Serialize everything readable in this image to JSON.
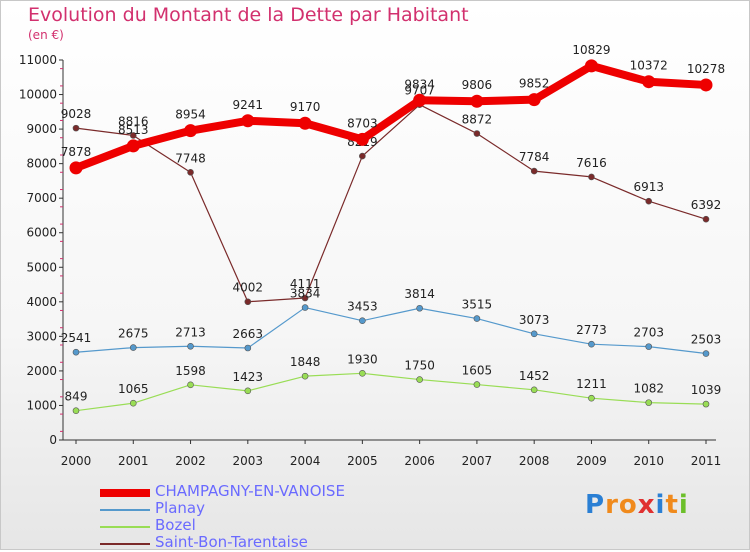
{
  "chart_data": {
    "type": "line",
    "title": "Evolution du Montant de la Dette par Habitant",
    "subtitle": "(en €)",
    "xlabel": "",
    "ylabel": "",
    "ylim": [
      0,
      11000
    ],
    "yticks": [
      0,
      1000,
      2000,
      3000,
      4000,
      5000,
      6000,
      7000,
      8000,
      9000,
      10000,
      11000
    ],
    "x": [
      "2000",
      "2001",
      "2002",
      "2003",
      "2004",
      "2005",
      "2006",
      "2007",
      "2008",
      "2009",
      "2010",
      "2011"
    ],
    "legend_position": "bottom-left",
    "grid": false,
    "series": [
      {
        "name": "CHAMPAGNY-EN-VANOISE",
        "color": "#ee0000",
        "values": [
          7878,
          8513,
          8954,
          9241,
          9170,
          8703,
          9834,
          9806,
          9852,
          10829,
          10372,
          10278
        ]
      },
      {
        "name": "Planay",
        "color": "#5599cc",
        "values": [
          2541,
          2675,
          2713,
          2663,
          3834,
          3453,
          3814,
          3515,
          3073,
          2773,
          2703,
          2503
        ]
      },
      {
        "name": "Bozel",
        "color": "#99dd55",
        "values": [
          849,
          1065,
          1598,
          1423,
          1848,
          1930,
          1750,
          1605,
          1452,
          1211,
          1082,
          1039
        ]
      },
      {
        "name": "Saint-Bon-Tarentaise",
        "color": "#7a2a2a",
        "values": [
          9028,
          8816,
          7748,
          4002,
          4111,
          8219,
          9707,
          8872,
          7784,
          7616,
          6913,
          6392
        ]
      }
    ]
  },
  "logo": {
    "text": "Proxiti",
    "letters": [
      "P",
      "r",
      "o",
      "x",
      "i",
      "t",
      "i"
    ],
    "colors": [
      "#2a7fd4",
      "#f08a1c",
      "#f08a1c",
      "#e03030",
      "#2a7fd4",
      "#f08a1c",
      "#6cbf2a"
    ]
  }
}
